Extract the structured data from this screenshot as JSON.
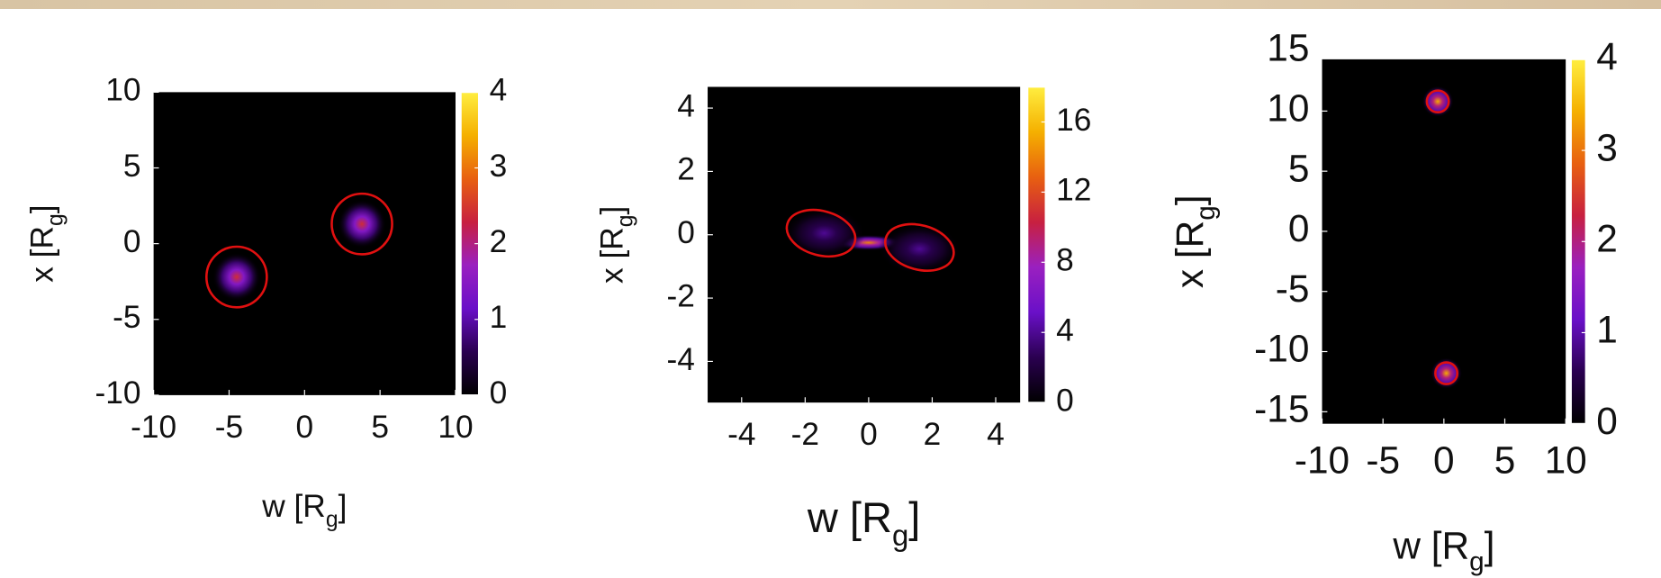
{
  "chart_data": [
    {
      "type": "heatmap",
      "xlabel": [
        "w [R",
        "g",
        "]"
      ],
      "ylabel": [
        "x [R",
        "g",
        "]"
      ],
      "xlim": [
        -10,
        10
      ],
      "ylim": [
        -10,
        10
      ],
      "xticks": [
        -10,
        -5,
        0,
        5,
        10
      ],
      "yticks": [
        -10,
        -5,
        0,
        5,
        10
      ],
      "colorbar_lim": [
        0,
        4
      ],
      "colorbar_ticks": [
        0,
        1,
        2,
        3,
        4
      ],
      "colormap": [
        "#000000",
        "#2a0050",
        "#6a10c8",
        "#9a20c0",
        "#c82040",
        "#e86010",
        "#f5b000",
        "#ffee40"
      ],
      "contour_color": "#e01010",
      "blobs": [
        {
          "w": -4.5,
          "x": -2.2,
          "peak": 2.4,
          "rw": 1.6,
          "rx": 1.6
        },
        {
          "w": 3.8,
          "x": 1.3,
          "peak": 2.4,
          "rw": 1.6,
          "rx": 1.6
        }
      ],
      "contours": [
        {
          "w": -4.5,
          "x": -2.2,
          "rw": 2.0,
          "rx": 2.0,
          "angle": 0
        },
        {
          "w": 3.8,
          "x": 1.3,
          "rw": 2.0,
          "rx": 2.0,
          "angle": 0
        }
      ]
    },
    {
      "type": "heatmap",
      "xlabel": [
        "w [R",
        "g",
        "]"
      ],
      "ylabel": [
        "x [R",
        "g",
        "]"
      ],
      "xlim": [
        -5.07,
        4.77
      ],
      "ylim": [
        -5.3,
        4.67
      ],
      "xticks": [
        -4,
        -2,
        0,
        2,
        4
      ],
      "yticks": [
        -4,
        -2,
        0,
        2,
        4
      ],
      "colorbar_lim": [
        0,
        18
      ],
      "colorbar_ticks": [
        0,
        4,
        8,
        12,
        16
      ],
      "colormap": [
        "#000000",
        "#2a0050",
        "#6a10c8",
        "#9a20c0",
        "#c82040",
        "#e86010",
        "#f5b000",
        "#ffee40"
      ],
      "contour_color": "#e01010",
      "blobs": [
        {
          "w": 0,
          "x": -0.25,
          "peak": 14,
          "rw": 1.1,
          "rx": 0.25
        },
        {
          "w": -1.4,
          "x": 0.05,
          "peak": 4,
          "rw": 1.3,
          "rx": 0.8
        },
        {
          "w": 1.6,
          "x": -0.45,
          "peak": 4,
          "rw": 1.3,
          "rx": 0.8
        }
      ],
      "contours": [
        {
          "w": -1.5,
          "x": 0.05,
          "rw": 1.1,
          "rx": 0.7,
          "angle": 15
        },
        {
          "w": 1.6,
          "x": -0.4,
          "rw": 1.1,
          "rx": 0.7,
          "angle": 15
        }
      ]
    },
    {
      "type": "heatmap",
      "xlabel": [
        "w [R",
        "g",
        "]"
      ],
      "ylabel": [
        "x [R",
        "g",
        "]"
      ],
      "xlim": [
        -10,
        10
      ],
      "ylim": [
        -16,
        14.3
      ],
      "xticks": [
        -10,
        -5,
        0,
        5,
        10
      ],
      "yticks": [
        -15,
        -10,
        -5,
        0,
        5,
        10,
        15
      ],
      "colorbar_lim": [
        0,
        4
      ],
      "colorbar_ticks": [
        0,
        1,
        2,
        3,
        4
      ],
      "colormap": [
        "#000000",
        "#2a0050",
        "#6a10c8",
        "#9a20c0",
        "#c82040",
        "#e86010",
        "#f5b000",
        "#ffee40"
      ],
      "contour_color": "#e01010",
      "blobs": [
        {
          "w": -0.5,
          "x": 10.8,
          "peak": 3.4,
          "rw": 1.3,
          "rx": 1.3
        },
        {
          "w": 0.2,
          "x": -11.8,
          "peak": 3.4,
          "rw": 1.3,
          "rx": 1.3
        }
      ],
      "contours": [
        {
          "w": -0.5,
          "x": 10.8,
          "rw": 0.9,
          "rx": 0.9,
          "angle": 0
        },
        {
          "w": 0.2,
          "x": -11.8,
          "rw": 0.9,
          "rx": 0.9,
          "angle": 0
        }
      ]
    }
  ]
}
